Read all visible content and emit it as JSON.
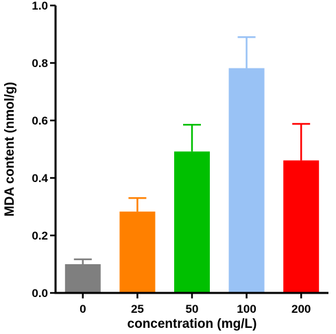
{
  "chart_data": {
    "type": "bar",
    "categories": [
      "0",
      "25",
      "50",
      "100",
      "200"
    ],
    "values": [
      0.1,
      0.283,
      0.492,
      0.782,
      0.461
    ],
    "errors": [
      0.017,
      0.047,
      0.093,
      0.108,
      0.127
    ],
    "colors": [
      "#7f7f7f",
      "#ff8000",
      "#00c000",
      "#99c2f5",
      "#ff0000"
    ],
    "xlabel": "concentration (mg/L)",
    "ylabel": "MDA content (nmol/g)",
    "ylim": [
      0.0,
      1.0
    ],
    "yticks": [
      "0.0",
      "0.2",
      "0.4",
      "0.6",
      "0.8",
      "1.0"
    ],
    "grid": false,
    "legend": "none"
  }
}
